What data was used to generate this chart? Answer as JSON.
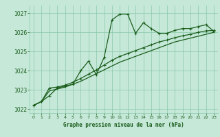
{
  "title": "Graphe pression niveau de la mer (hPa)",
  "bg_color": "#c5e8d8",
  "grid_color": "#88c8a8",
  "line_color": "#1a5c1a",
  "xlim": [
    -0.5,
    23.5
  ],
  "ylim": [
    1021.8,
    1027.4
  ],
  "yticks": [
    1022,
    1023,
    1024,
    1025,
    1026,
    1027
  ],
  "xticks": [
    0,
    1,
    2,
    3,
    4,
    5,
    6,
    7,
    8,
    9,
    10,
    11,
    12,
    13,
    14,
    15,
    16,
    17,
    18,
    19,
    20,
    21,
    22,
    23
  ],
  "series1_x": [
    0,
    1,
    2,
    3,
    4,
    5,
    6,
    7,
    8,
    9,
    10,
    11,
    12,
    13,
    14,
    15,
    16,
    17,
    18,
    19,
    20,
    21,
    22,
    23
  ],
  "series1_y": [
    1022.2,
    1022.4,
    1022.7,
    1023.1,
    1023.2,
    1023.3,
    1024.0,
    1024.5,
    1023.8,
    1024.7,
    1026.65,
    1026.95,
    1026.95,
    1025.95,
    1026.5,
    1026.2,
    1025.95,
    1025.95,
    1026.1,
    1026.2,
    1026.2,
    1026.3,
    1026.4,
    1026.05
  ],
  "series2_x": [
    0,
    1,
    2,
    3,
    4,
    5,
    6,
    7,
    8,
    9,
    10,
    11,
    12,
    13,
    14,
    15,
    16,
    17,
    18,
    19,
    20,
    21,
    22,
    23
  ],
  "series2_y": [
    1022.2,
    1022.4,
    1023.1,
    1023.15,
    1023.25,
    1023.4,
    1023.6,
    1023.82,
    1024.05,
    1024.3,
    1024.55,
    1024.75,
    1024.9,
    1025.05,
    1025.2,
    1025.35,
    1025.5,
    1025.6,
    1025.72,
    1025.82,
    1025.9,
    1026.0,
    1026.08,
    1026.1
  ],
  "series3_x": [
    0,
    1,
    2,
    3,
    4,
    5,
    6,
    7,
    8,
    9,
    10,
    11,
    12,
    13,
    14,
    15,
    16,
    17,
    18,
    19,
    20,
    21,
    22,
    23
  ],
  "series3_y": [
    1022.2,
    1022.4,
    1022.95,
    1023.05,
    1023.15,
    1023.3,
    1023.45,
    1023.65,
    1023.85,
    1024.05,
    1024.25,
    1024.45,
    1024.6,
    1024.75,
    1024.9,
    1025.05,
    1025.2,
    1025.35,
    1025.5,
    1025.6,
    1025.7,
    1025.8,
    1025.9,
    1026.0
  ]
}
